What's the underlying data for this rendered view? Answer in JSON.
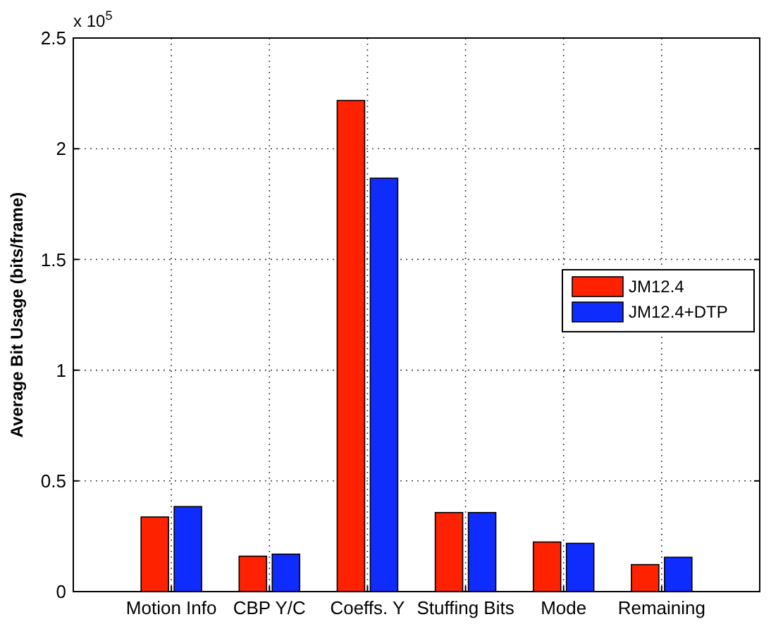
{
  "chart_data": {
    "type": "bar",
    "ylabel": "Average Bit Usage (bits/frame)",
    "annotations": [
      "x 10$^{5}$"
    ],
    "categories": [
      "Motion Info",
      "CBP Y/C",
      "Coeffs. Y",
      "Stuffing Bits",
      "Mode",
      "Remaining"
    ],
    "series": [
      {
        "name": "JM12.4",
        "color": "#ff2200",
        "values": [
          0.337,
          0.16,
          2.218,
          0.357,
          0.224,
          0.122
        ]
      },
      {
        "name": "JM12.4+DTP",
        "color": "#0f2cff",
        "values": [
          0.384,
          0.169,
          1.867,
          0.357,
          0.218,
          0.155
        ]
      }
    ],
    "ylim": [
      0,
      2.5
    ],
    "yticks": [
      0,
      0.5,
      1,
      1.5,
      2,
      2.5
    ],
    "grid": true,
    "legend": "right"
  }
}
